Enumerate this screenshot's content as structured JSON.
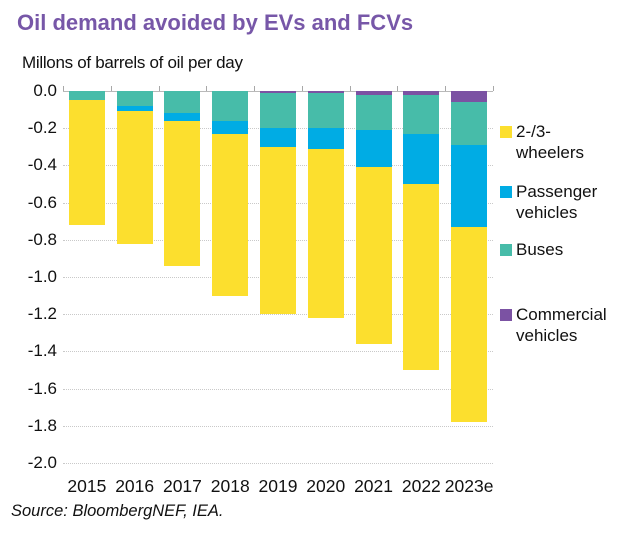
{
  "title": "Oil demand avoided by EVs and FCVs",
  "subtitle": "Millons of barrels of oil per day",
  "source": "Source: BloombergNEF, IEA.",
  "colors": {
    "title": "#7757A8",
    "wheelers": "#FCDF2E",
    "passenger": "#00ACE4",
    "buses": "#47BCA9",
    "commercial": "#7B52A3",
    "grid": "#c9c9c9",
    "zero_axis": "#b9b9b9",
    "text": "#111111"
  },
  "chart_data": {
    "type": "bar",
    "stacked": true,
    "bar_direction": "negative (bars extend downward from 0)",
    "title": "Oil demand avoided by EVs and FCVs",
    "subtitle": "Millons of barrels of oil per day",
    "xlabel": "",
    "ylabel": "Millons of barrels of oil per day",
    "ylim": [
      0.0,
      -2.0
    ],
    "grid": "horizontal dotted",
    "legend_position": "right",
    "categories": [
      "2015",
      "2016",
      "2017",
      "2018",
      "2019",
      "2020",
      "2021",
      "2022",
      "2023e"
    ],
    "y_ticks": [
      "0.0",
      "-0.2",
      "-0.4",
      "-0.6",
      "-0.8",
      "-1.0",
      "-1.2",
      "-1.4",
      "-1.6",
      "-1.8",
      "-2.0"
    ],
    "series_note": "values are magnitudes in Mb/d, plotted as negative; stacking order from the zero line downward",
    "series": [
      {
        "name": "Commercial vehicles",
        "color_key": "commercial",
        "values": [
          0.0,
          0.0,
          0.0,
          0.0,
          0.01,
          0.01,
          0.02,
          0.02,
          0.06
        ]
      },
      {
        "name": "Buses",
        "color_key": "buses",
        "values": [
          0.05,
          0.08,
          0.12,
          0.16,
          0.19,
          0.19,
          0.19,
          0.21,
          0.23
        ]
      },
      {
        "name": "Passenger vehicles",
        "color_key": "passenger",
        "values": [
          0.0,
          0.03,
          0.04,
          0.07,
          0.1,
          0.11,
          0.2,
          0.27,
          0.44
        ]
      },
      {
        "name": "2-/3-wheelers",
        "color_key": "wheelers",
        "values": [
          0.67,
          0.71,
          0.78,
          0.87,
          0.9,
          0.91,
          0.95,
          1.0,
          1.05
        ]
      }
    ],
    "totals": [
      -0.72,
      -0.82,
      -0.94,
      -1.1,
      -1.2,
      -1.22,
      -1.36,
      -1.5,
      -1.78
    ],
    "legend": [
      {
        "label": "2-/3-\nwheelers",
        "color_key": "wheelers"
      },
      {
        "label": "Passenger vehicles",
        "color_key": "passenger"
      },
      {
        "label": "Buses",
        "color_key": "buses"
      },
      {
        "label": "Commercial vehicles",
        "color_key": "commercial"
      }
    ]
  }
}
